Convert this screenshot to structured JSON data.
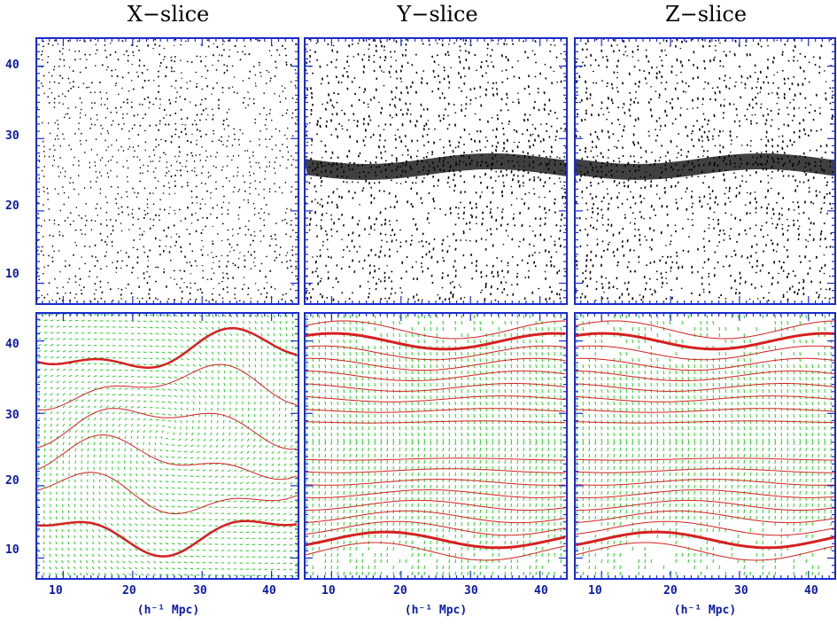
{
  "chart_data": {
    "type": "scatter",
    "columns": [
      "X−slice",
      "Y−slice",
      "Z−slice"
    ],
    "xlabel": "(h⁻¹ Mpc)",
    "xticks": [
      10,
      20,
      30,
      40
    ],
    "yticks": [
      10,
      20,
      30,
      40
    ],
    "xlim": [
      6,
      44
    ],
    "ylim": [
      7,
      44
    ],
    "rows": [
      {
        "kind": "particle-distribution",
        "color": "#000000"
      },
      {
        "kind": "velocity-field-with-contours",
        "vector_color": "#22cc22",
        "contour_color": "#d62020"
      }
    ],
    "axis_color": "#1a2bd0"
  }
}
